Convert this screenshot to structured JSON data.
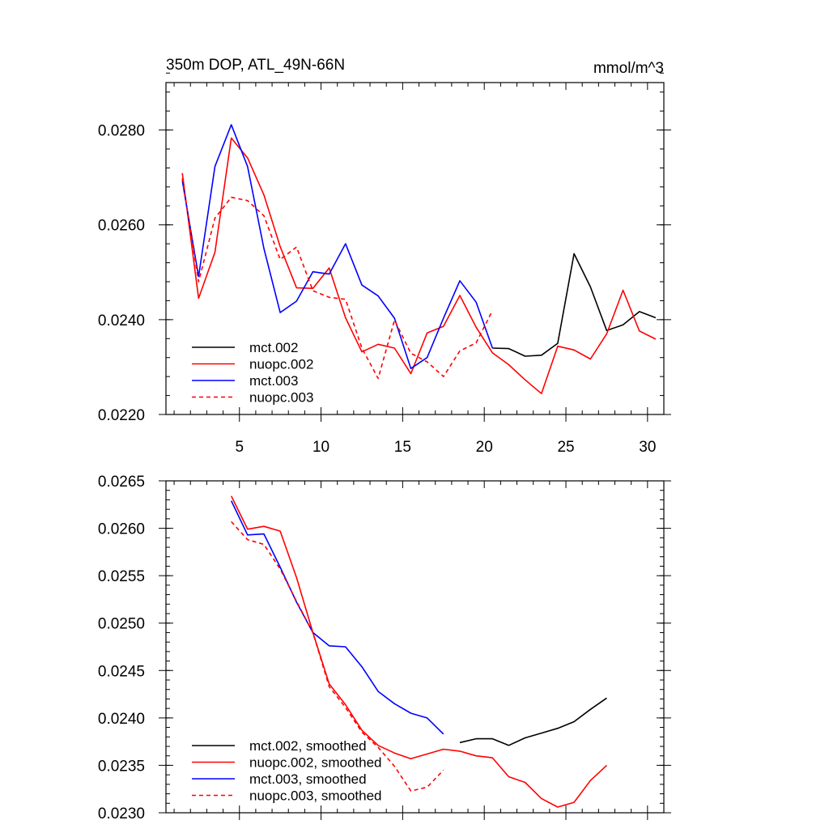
{
  "chart_data": [
    {
      "type": "line",
      "title": "350m DOP, ATL_49N-66N",
      "units": "mmol/m^3",
      "x_ticks": [
        5,
        10,
        15,
        20,
        25,
        30
      ],
      "y_ticks": [
        "0.0220",
        "0.0240",
        "0.0260",
        "0.0280"
      ],
      "xlim": [
        0.5,
        31.0
      ],
      "ylim": [
        0.022,
        0.029
      ],
      "legend_position": "bottom-left",
      "series": [
        {
          "name": "mct.002",
          "color": "#000000",
          "dash": "solid",
          "x": [
            20.5,
            21.5,
            22.5,
            23.5,
            24.5,
            25.5,
            26.5,
            27.5,
            28.5,
            29.5,
            30.5
          ],
          "y": [
            0.0234,
            0.02339,
            0.02323,
            0.02325,
            0.0235,
            0.02539,
            0.02469,
            0.02377,
            0.02389,
            0.02417,
            0.02404
          ]
        },
        {
          "name": "nuopc.002",
          "color": "#ff0000",
          "dash": "solid",
          "x": [
            1.5,
            2.5,
            3.5,
            4.5,
            5.5,
            6.5,
            7.5,
            8.5,
            9.5,
            10.5,
            11.5,
            12.5,
            13.5,
            14.5,
            15.5,
            16.5,
            17.5,
            18.5,
            19.5,
            20.5,
            21.5,
            22.5,
            23.5,
            24.5,
            25.5,
            26.5,
            27.5,
            28.5,
            29.5,
            30.5
          ],
          "y": [
            0.02709,
            0.02445,
            0.02542,
            0.02783,
            0.02741,
            0.02663,
            0.02554,
            0.02467,
            0.02466,
            0.02509,
            0.02404,
            0.02332,
            0.02348,
            0.0234,
            0.02286,
            0.02372,
            0.02386,
            0.02451,
            0.02384,
            0.0233,
            0.02305,
            0.02273,
            0.02244,
            0.02344,
            0.02336,
            0.02317,
            0.0237,
            0.02462,
            0.02376,
            0.02359
          ]
        },
        {
          "name": "mct.003",
          "color": "#0000ff",
          "dash": "solid",
          "x": [
            1.5,
            2.5,
            3.5,
            4.5,
            5.5,
            6.5,
            7.5,
            8.5,
            9.5,
            10.5,
            11.5,
            12.5,
            13.5,
            14.5,
            15.5,
            16.5,
            17.5,
            18.5,
            19.5,
            20.5
          ],
          "y": [
            0.02693,
            0.02491,
            0.02723,
            0.02811,
            0.02723,
            0.0255,
            0.02415,
            0.02439,
            0.02501,
            0.02496,
            0.0256,
            0.02473,
            0.0245,
            0.02403,
            0.02297,
            0.0232,
            0.02403,
            0.02482,
            0.02437,
            0.0234
          ]
        },
        {
          "name": "nuopc.003",
          "color": "#ff0000",
          "dash": "dashed",
          "x": [
            1.5,
            2.5,
            3.5,
            4.5,
            5.5,
            6.5,
            7.5,
            8.5,
            9.5,
            10.5,
            11.5,
            12.5,
            13.5,
            14.5,
            15.5,
            16.5,
            17.5,
            18.5,
            19.5,
            20.5
          ],
          "y": [
            0.02698,
            0.0248,
            0.02614,
            0.02658,
            0.02651,
            0.02619,
            0.02527,
            0.02553,
            0.02461,
            0.02447,
            0.02443,
            0.0234,
            0.02276,
            0.02399,
            0.02329,
            0.02311,
            0.0228,
            0.02334,
            0.02351,
            0.02419
          ]
        }
      ]
    },
    {
      "type": "line",
      "title": "",
      "units": "",
      "x_ticks": [
        5,
        10,
        15,
        20,
        25,
        30
      ],
      "x_tick_labels_shown": false,
      "y_ticks": [
        "0.0230",
        "0.0235",
        "0.0240",
        "0.0245",
        "0.0250",
        "0.0255",
        "0.0260",
        "0.0265"
      ],
      "xlim": [
        0.5,
        31.0
      ],
      "ylim": [
        0.023,
        0.0265
      ],
      "legend_position": "bottom-left",
      "series": [
        {
          "name": "mct.002, smoothed",
          "color": "#000000",
          "dash": "solid",
          "x": [
            18.5,
            19.5,
            20.5,
            21.5,
            22.5,
            23.5,
            24.5,
            25.5,
            26.5,
            27.5
          ],
          "y": [
            0.02374,
            0.02378,
            0.02378,
            0.02371,
            0.02379,
            0.02384,
            0.02389,
            0.02396,
            0.02409,
            0.02421
          ]
        },
        {
          "name": "nuopc.002, smoothed",
          "color": "#ff0000",
          "dash": "solid",
          "x": [
            4.5,
            5.5,
            6.5,
            7.5,
            8.5,
            9.5,
            10.5,
            11.5,
            12.5,
            13.5,
            14.5,
            15.5,
            16.5,
            17.5,
            18.5,
            19.5,
            20.5,
            21.5,
            22.5,
            23.5,
            24.5,
            25.5,
            26.5,
            27.5
          ],
          "y": [
            0.02634,
            0.02599,
            0.02602,
            0.02597,
            0.02548,
            0.0249,
            0.02436,
            0.02414,
            0.02387,
            0.02371,
            0.02363,
            0.02357,
            0.02362,
            0.02367,
            0.02365,
            0.0236,
            0.02358,
            0.02338,
            0.02332,
            0.02315,
            0.02306,
            0.02311,
            0.02334,
            0.0235
          ]
        },
        {
          "name": "mct.003, smoothed",
          "color": "#0000ff",
          "dash": "solid",
          "x": [
            4.5,
            5.5,
            6.5,
            7.5,
            8.5,
            9.5,
            10.5,
            11.5,
            12.5,
            13.5,
            14.5,
            15.5,
            16.5,
            17.5
          ],
          "y": [
            0.02629,
            0.02593,
            0.02594,
            0.02559,
            0.02522,
            0.0249,
            0.02476,
            0.02475,
            0.02454,
            0.02428,
            0.02415,
            0.02405,
            0.024,
            0.02383
          ]
        },
        {
          "name": "nuopc.003, smoothed",
          "color": "#ff0000",
          "dash": "dashed",
          "x": [
            4.5,
            5.5,
            6.5,
            7.5,
            8.5,
            9.5,
            10.5,
            11.5,
            12.5,
            13.5,
            14.5,
            15.5,
            16.5,
            17.5
          ],
          "y": [
            0.02607,
            0.02588,
            0.02583,
            0.02557,
            0.02523,
            0.0249,
            0.02433,
            0.02411,
            0.02385,
            0.02369,
            0.02349,
            0.02323,
            0.02327,
            0.02345
          ]
        }
      ]
    }
  ]
}
